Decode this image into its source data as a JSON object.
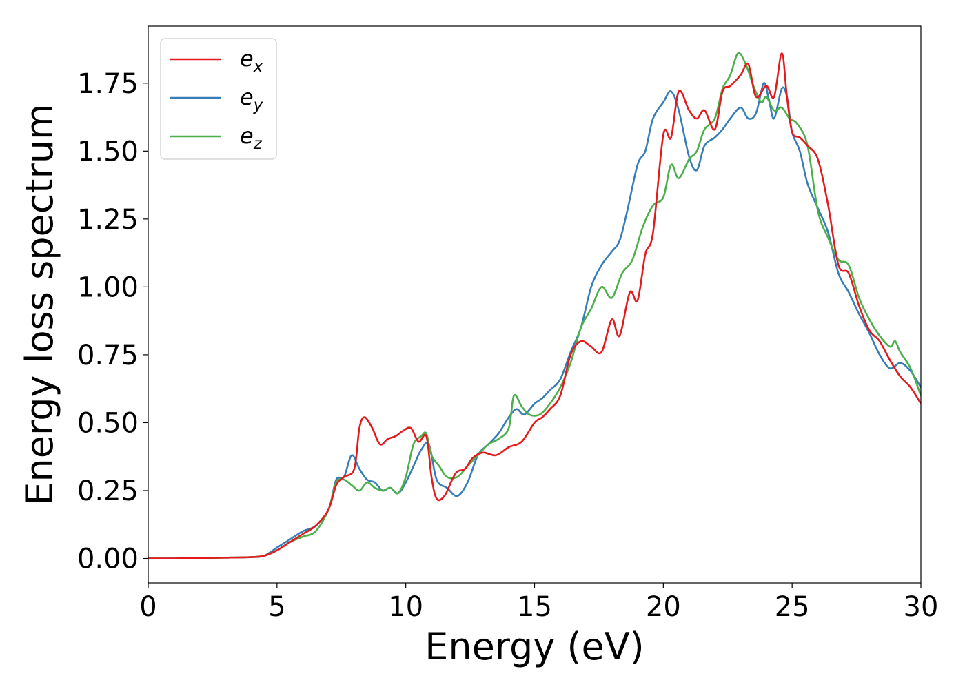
{
  "chart_data": {
    "type": "line",
    "title": "",
    "xlabel": "Energy (eV)",
    "ylabel": "Energy loss spectrum",
    "xlim": [
      0,
      30
    ],
    "ylim": [
      -0.09,
      1.96
    ],
    "xticks": [
      0,
      5,
      10,
      15,
      20,
      25,
      30
    ],
    "xtick_labels": [
      "0",
      "5",
      "10",
      "15",
      "20",
      "25",
      "30"
    ],
    "yticks": [
      0.0,
      0.25,
      0.5,
      0.75,
      1.0,
      1.25,
      1.5,
      1.75
    ],
    "ytick_labels": [
      "0.00",
      "0.25",
      "0.50",
      "0.75",
      "1.00",
      "1.25",
      "1.50",
      "1.75"
    ],
    "grid": false,
    "legend": {
      "position": "upper-left",
      "entries": [
        {
          "base": "e",
          "sub": "x"
        },
        {
          "base": "e",
          "sub": "y"
        },
        {
          "base": "e",
          "sub": "z"
        }
      ]
    },
    "series": [
      {
        "name": "e_x",
        "color": "#e41a1c",
        "x": [
          0,
          1,
          2,
          3,
          4,
          4.5,
          5,
          5.5,
          6,
          6.5,
          7,
          7.3,
          7.6,
          8,
          8.2,
          8.4,
          8.7,
          9,
          9.3,
          9.6,
          9.9,
          10.2,
          10.5,
          10.8,
          11,
          11.2,
          11.5,
          11.8,
          12,
          12.3,
          12.6,
          13,
          13.5,
          14,
          14.5,
          15,
          15.3,
          15.6,
          16,
          16.4,
          16.8,
          17.2,
          17.6,
          18,
          18.3,
          18.7,
          19,
          19.3,
          19.6,
          20,
          20.3,
          20.6,
          21,
          21.3,
          21.6,
          22,
          22.3,
          22.6,
          23,
          23.3,
          23.6,
          24,
          24.3,
          24.6,
          24.8,
          25,
          25.3,
          25.6,
          26,
          26.4,
          26.8,
          27.2,
          27.6,
          28,
          28.4,
          28.8,
          29.2,
          29.6,
          30
        ],
        "y": [
          0,
          0,
          0.002,
          0.003,
          0.005,
          0.01,
          0.03,
          0.06,
          0.09,
          0.12,
          0.18,
          0.27,
          0.3,
          0.33,
          0.48,
          0.52,
          0.48,
          0.42,
          0.44,
          0.45,
          0.47,
          0.48,
          0.43,
          0.45,
          0.3,
          0.22,
          0.23,
          0.29,
          0.32,
          0.33,
          0.37,
          0.39,
          0.38,
          0.41,
          0.43,
          0.5,
          0.52,
          0.55,
          0.6,
          0.75,
          0.8,
          0.78,
          0.76,
          0.88,
          0.82,
          0.98,
          0.95,
          1.12,
          1.2,
          1.56,
          1.55,
          1.72,
          1.65,
          1.62,
          1.65,
          1.58,
          1.72,
          1.74,
          1.78,
          1.82,
          1.7,
          1.74,
          1.7,
          1.86,
          1.7,
          1.57,
          1.55,
          1.52,
          1.47,
          1.3,
          1.08,
          1.05,
          0.93,
          0.84,
          0.8,
          0.73,
          0.67,
          0.63,
          0.57
        ]
      },
      {
        "name": "e_y",
        "color": "#377eb8",
        "x": [
          0,
          1,
          2,
          3,
          4,
          4.5,
          5,
          5.5,
          6,
          6.5,
          7,
          7.3,
          7.6,
          7.9,
          8.2,
          8.5,
          8.8,
          9.1,
          9.4,
          9.7,
          10,
          10.3,
          10.6,
          10.9,
          11.2,
          11.6,
          12,
          12.4,
          12.8,
          13.2,
          13.6,
          14,
          14.3,
          14.6,
          15,
          15.3,
          15.6,
          16,
          16.4,
          16.8,
          17.2,
          17.6,
          18,
          18.3,
          18.6,
          19,
          19.3,
          19.6,
          20,
          20.3,
          20.6,
          21,
          21.3,
          21.6,
          22,
          22.3,
          22.6,
          23,
          23.3,
          23.6,
          23.9,
          24.1,
          24.3,
          24.6,
          24.8,
          25,
          25.3,
          25.6,
          26,
          26.4,
          26.8,
          27.2,
          27.6,
          28,
          28.4,
          28.8,
          29.2,
          29.6,
          30
        ],
        "y": [
          0,
          0,
          0.002,
          0.003,
          0.005,
          0.01,
          0.04,
          0.07,
          0.1,
          0.12,
          0.18,
          0.29,
          0.3,
          0.38,
          0.33,
          0.29,
          0.28,
          0.25,
          0.26,
          0.24,
          0.28,
          0.34,
          0.4,
          0.42,
          0.29,
          0.26,
          0.23,
          0.28,
          0.38,
          0.42,
          0.46,
          0.52,
          0.55,
          0.53,
          0.57,
          0.59,
          0.62,
          0.66,
          0.76,
          0.85,
          1.0,
          1.08,
          1.13,
          1.17,
          1.28,
          1.45,
          1.5,
          1.62,
          1.68,
          1.72,
          1.65,
          1.48,
          1.43,
          1.52,
          1.55,
          1.58,
          1.62,
          1.66,
          1.62,
          1.64,
          1.75,
          1.69,
          1.62,
          1.73,
          1.7,
          1.57,
          1.5,
          1.38,
          1.29,
          1.2,
          1.05,
          0.98,
          0.9,
          0.83,
          0.75,
          0.7,
          0.72,
          0.69,
          0.63
        ]
      },
      {
        "name": "e_z",
        "color": "#4daf4a",
        "x": [
          0,
          1,
          2,
          3,
          4,
          4.5,
          5,
          5.5,
          6,
          6.5,
          7,
          7.3,
          7.6,
          7.9,
          8.2,
          8.5,
          8.8,
          9.1,
          9.4,
          9.7,
          10,
          10.3,
          10.6,
          10.8,
          11,
          11.3,
          11.6,
          12,
          12.4,
          12.8,
          13.2,
          13.6,
          14,
          14.2,
          14.5,
          14.8,
          15.2,
          15.6,
          16,
          16.4,
          16.8,
          17.2,
          17.6,
          18,
          18.4,
          18.8,
          19.2,
          19.6,
          20,
          20.3,
          20.6,
          21,
          21.3,
          21.6,
          22,
          22.3,
          22.6,
          22.9,
          23.2,
          23.5,
          23.8,
          24,
          24.3,
          24.6,
          24.9,
          25.2,
          25.6,
          26,
          26.4,
          26.8,
          27.2,
          27.6,
          28,
          28.4,
          28.8,
          29,
          29.2,
          29.6,
          30
        ],
        "y": [
          0,
          0,
          0.002,
          0.003,
          0.005,
          0.01,
          0.03,
          0.06,
          0.08,
          0.1,
          0.18,
          0.28,
          0.29,
          0.27,
          0.25,
          0.28,
          0.26,
          0.25,
          0.26,
          0.24,
          0.3,
          0.42,
          0.45,
          0.46,
          0.38,
          0.34,
          0.3,
          0.3,
          0.34,
          0.38,
          0.42,
          0.44,
          0.48,
          0.6,
          0.56,
          0.53,
          0.53,
          0.57,
          0.63,
          0.72,
          0.85,
          0.92,
          1.0,
          0.96,
          1.05,
          1.1,
          1.22,
          1.3,
          1.33,
          1.45,
          1.4,
          1.47,
          1.5,
          1.58,
          1.62,
          1.73,
          1.78,
          1.86,
          1.82,
          1.74,
          1.68,
          1.7,
          1.65,
          1.66,
          1.62,
          1.6,
          1.52,
          1.28,
          1.18,
          1.1,
          1.08,
          0.96,
          0.88,
          0.82,
          0.78,
          0.8,
          0.76,
          0.7,
          0.6
        ]
      }
    ]
  }
}
